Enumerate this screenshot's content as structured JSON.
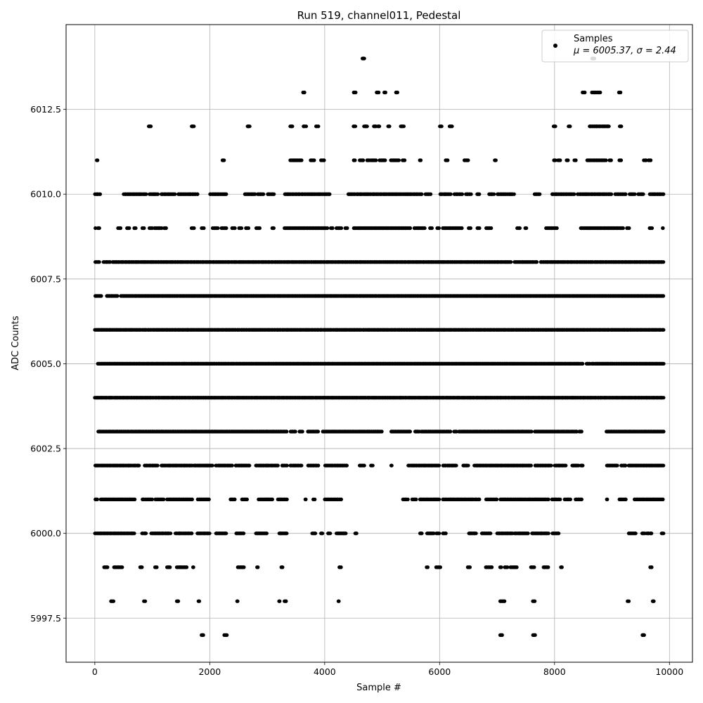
{
  "chart_data": {
    "type": "scatter",
    "title": "Run 519, channel011, Pedestal",
    "xlabel": "Sample #",
    "ylabel": "ADC Counts",
    "xlim": [
      -500,
      10400
    ],
    "ylim": [
      5996.2,
      6015.0
    ],
    "xticks": [
      0,
      2000,
      4000,
      6000,
      8000,
      10000
    ],
    "xtick_labels": [
      "0",
      "2000",
      "4000",
      "6000",
      "8000",
      "10000"
    ],
    "yticks": [
      5997.5,
      6000.0,
      6002.5,
      6005.0,
      6007.5,
      6010.0,
      6012.5
    ],
    "ytick_labels": [
      "5997.5",
      "6000.0",
      "6002.5",
      "6005.0",
      "6007.5",
      "6010.0",
      "6012.5"
    ],
    "grid": true,
    "legend_position": "top-right",
    "series": [
      {
        "name": "Samples",
        "label_line2": "μ = 6005.37, σ = 2.44",
        "color": "#000000",
        "n_samples": 10000,
        "level_density": {
          "5997": [
            [
              1850,
              1900
            ],
            [
              2250,
              2300
            ],
            [
              7050,
              7100
            ],
            [
              7620,
              7670
            ],
            [
              9520,
              9570
            ]
          ],
          "5998": [
            [
              270,
              330
            ],
            [
              850,
              880
            ],
            [
              1420,
              1460
            ],
            [
              1800,
              1830
            ],
            [
              2470,
              2500
            ],
            [
              3200,
              3230
            ],
            [
              3300,
              3340
            ],
            [
              4230,
              4260
            ],
            [
              7050,
              7140
            ],
            [
              7620,
              7660
            ],
            [
              9270,
              9300
            ],
            [
              9700,
              9740
            ]
          ],
          "5999": [
            [
              150,
              230
            ],
            [
              330,
              480
            ],
            [
              780,
              830
            ],
            [
              1040,
              1080
            ],
            [
              1250,
              1320
            ],
            [
              1420,
              1610
            ],
            [
              1700,
              1730
            ],
            [
              2480,
              2600
            ],
            [
              2820,
              2850
            ],
            [
              3240,
              3280
            ],
            [
              4250,
              4290
            ],
            [
              5770,
              5800
            ],
            [
              5930,
              6020
            ],
            [
              6480,
              6540
            ],
            [
              6800,
              6920
            ],
            [
              7050,
              7080
            ],
            [
              7130,
              7180
            ],
            [
              7230,
              7350
            ],
            [
              7580,
              7650
            ],
            [
              7800,
              7900
            ],
            [
              8100,
              8140
            ],
            [
              9660,
              9700
            ]
          ],
          "6000": [
            [
              0,
              700
            ],
            [
              820,
              900
            ],
            [
              980,
              1320
            ],
            [
              1400,
              1700
            ],
            [
              1780,
              2000
            ],
            [
              2100,
              2300
            ],
            [
              2450,
              2600
            ],
            [
              2800,
              3000
            ],
            [
              3200,
              3350
            ],
            [
              3780,
              3850
            ],
            [
              3930,
              3970
            ],
            [
              4050,
              4100
            ],
            [
              4200,
              4380
            ],
            [
              4520,
              4560
            ],
            [
              5650,
              5700
            ],
            [
              5780,
              5900
            ],
            [
              5940,
              6000
            ],
            [
              6050,
              6120
            ],
            [
              6500,
              6640
            ],
            [
              6730,
              6900
            ],
            [
              7000,
              7280
            ],
            [
              7300,
              7550
            ],
            [
              7600,
              7900
            ],
            [
              7960,
              8080
            ],
            [
              9280,
              9420
            ],
            [
              9520,
              9570
            ],
            [
              9600,
              9700
            ],
            [
              9860,
              9900
            ]
          ],
          "6001": [
            [
              0,
              50
            ],
            [
              100,
              700
            ],
            [
              820,
              1000
            ],
            [
              1050,
              1200
            ],
            [
              1250,
              1700
            ],
            [
              1780,
              2000
            ],
            [
              2350,
              2450
            ],
            [
              2550,
              2660
            ],
            [
              2850,
              3100
            ],
            [
              3180,
              3350
            ],
            [
              3650,
              3680
            ],
            [
              3800,
              3830
            ],
            [
              4000,
              4300
            ],
            [
              5360,
              5450
            ],
            [
              5520,
              5600
            ],
            [
              5650,
              6000
            ],
            [
              6050,
              6700
            ],
            [
              6800,
              7000
            ],
            [
              7050,
              7900
            ],
            [
              7950,
              8100
            ],
            [
              8170,
              8280
            ],
            [
              8360,
              8480
            ],
            [
              8900,
              8930
            ],
            [
              9120,
              9250
            ],
            [
              9380,
              9900
            ]
          ],
          "6002": [
            [
              0,
              780
            ],
            [
              860,
              1100
            ],
            [
              1150,
              1700
            ],
            [
              1720,
              2050
            ],
            [
              2100,
              2400
            ],
            [
              2440,
              2700
            ],
            [
              2800,
              3200
            ],
            [
              3250,
              3350
            ],
            [
              3400,
              3600
            ],
            [
              3700,
              3900
            ],
            [
              4000,
              4400
            ],
            [
              4600,
              4700
            ],
            [
              4800,
              4840
            ],
            [
              5150,
              5180
            ],
            [
              5450,
              6000
            ],
            [
              6050,
              6300
            ],
            [
              6400,
              6500
            ],
            [
              6600,
              7600
            ],
            [
              7650,
              7950
            ],
            [
              8000,
              8200
            ],
            [
              8300,
              8420
            ],
            [
              8450,
              8500
            ],
            [
              8900,
              9100
            ],
            [
              9150,
              9250
            ],
            [
              9280,
              9900
            ]
          ],
          "6003": [
            [
              50,
              3350
            ],
            [
              3400,
              3500
            ],
            [
              3560,
              3620
            ],
            [
              3700,
              3900
            ],
            [
              3960,
              5000
            ],
            [
              5150,
              5500
            ],
            [
              5570,
              5650
            ],
            [
              5680,
              6200
            ],
            [
              6250,
              6300
            ],
            [
              6330,
              7600
            ],
            [
              7650,
              8400
            ],
            [
              8430,
              8480
            ],
            [
              8900,
              9900
            ]
          ],
          "6004": [
            [
              0,
              9900
            ]
          ],
          "6005": [
            [
              50,
              8500
            ],
            [
              8550,
              8620
            ],
            [
              8640,
              9900
            ]
          ],
          "6006": [
            [
              0,
              9900
            ]
          ],
          "6007": [
            [
              0,
              120
            ],
            [
              200,
              400
            ],
            [
              450,
              9900
            ]
          ],
          "6008": [
            [
              0,
              90
            ],
            [
              150,
              280
            ],
            [
              300,
              7250
            ],
            [
              7300,
              7700
            ],
            [
              7750,
              9900
            ]
          ],
          "6009": [
            [
              0,
              20
            ],
            [
              50,
              90
            ],
            [
              400,
              460
            ],
            [
              550,
              600
            ],
            [
              680,
              720
            ],
            [
              820,
              860
            ],
            [
              950,
              1000
            ],
            [
              1040,
              1170
            ],
            [
              1200,
              1250
            ],
            [
              1680,
              1730
            ],
            [
              1860,
              1900
            ],
            [
              2050,
              2150
            ],
            [
              2200,
              2300
            ],
            [
              2380,
              2450
            ],
            [
              2500,
              2560
            ],
            [
              2620,
              2680
            ],
            [
              2800,
              2880
            ],
            [
              3080,
              3120
            ],
            [
              3300,
              3330
            ],
            [
              3320,
              4050
            ],
            [
              4100,
              4150
            ],
            [
              4200,
              4300
            ],
            [
              4350,
              4400
            ],
            [
              4500,
              5500
            ],
            [
              5550,
              5750
            ],
            [
              5830,
              5870
            ],
            [
              5950,
              6000
            ],
            [
              6050,
              6400
            ],
            [
              6500,
              6550
            ],
            [
              6650,
              6700
            ],
            [
              6800,
              6900
            ],
            [
              7350,
              7400
            ],
            [
              7480,
              7520
            ],
            [
              7850,
              8050
            ],
            [
              8450,
              9200
            ],
            [
              9250,
              9300
            ],
            [
              9650,
              9700
            ],
            [
              9870,
              9900
            ]
          ],
          "6010": [
            [
              0,
              100
            ],
            [
              500,
              900
            ],
            [
              950,
              1100
            ],
            [
              1150,
              1400
            ],
            [
              1450,
              1800
            ],
            [
              2000,
              2300
            ],
            [
              2600,
              2800
            ],
            [
              2830,
              2940
            ],
            [
              3000,
              3120
            ],
            [
              3300,
              4100
            ],
            [
              4400,
              5700
            ],
            [
              5750,
              5850
            ],
            [
              6000,
              6200
            ],
            [
              6250,
              6400
            ],
            [
              6450,
              6550
            ],
            [
              6650,
              6700
            ],
            [
              6850,
              6950
            ],
            [
              7000,
              7300
            ],
            [
              7650,
              7750
            ],
            [
              7950,
              8350
            ],
            [
              8400,
              9000
            ],
            [
              9050,
              9250
            ],
            [
              9300,
              9400
            ],
            [
              9450,
              9550
            ],
            [
              9650,
              9900
            ]
          ],
          "6011": [
            [
              30,
              60
            ],
            [
              2220,
              2260
            ],
            [
              3400,
              3600
            ],
            [
              3750,
              3820
            ],
            [
              3930,
              4000
            ],
            [
              4500,
              4540
            ],
            [
              4600,
              4680
            ],
            [
              4730,
              4780
            ],
            [
              4800,
              4900
            ],
            [
              4950,
              5060
            ],
            [
              5150,
              5300
            ],
            [
              5350,
              5400
            ],
            [
              5650,
              5680
            ],
            [
              6100,
              6150
            ],
            [
              6420,
              6500
            ],
            [
              6950,
              6990
            ],
            [
              7980,
              8020
            ],
            [
              8060,
              8100
            ],
            [
              8200,
              8240
            ],
            [
              8340,
              8380
            ],
            [
              8560,
              8900
            ],
            [
              8950,
              8990
            ],
            [
              9120,
              9170
            ],
            [
              9550,
              9600
            ],
            [
              9630,
              9680
            ]
          ],
          "6012": [
            [
              930,
              980
            ],
            [
              1680,
              1730
            ],
            [
              2650,
              2700
            ],
            [
              3400,
              3450
            ],
            [
              3620,
              3680
            ],
            [
              3840,
              3900
            ],
            [
              4500,
              4540
            ],
            [
              4680,
              4750
            ],
            [
              4850,
              4900
            ],
            [
              4920,
              4960
            ],
            [
              5100,
              5140
            ],
            [
              5320,
              5380
            ],
            [
              6000,
              6040
            ],
            [
              6170,
              6220
            ],
            [
              7980,
              8020
            ],
            [
              8240,
              8280
            ],
            [
              8600,
              8950
            ],
            [
              9130,
              9170
            ]
          ],
          "6013": [
            [
              3620,
              3660
            ],
            [
              4500,
              4550
            ],
            [
              4900,
              4950
            ],
            [
              5030,
              5070
            ],
            [
              5230,
              5270
            ],
            [
              8480,
              8530
            ],
            [
              8650,
              8800
            ],
            [
              9120,
              9160
            ]
          ],
          "6014": [
            [
              4650,
              4700
            ],
            [
              8650,
              8700
            ]
          ]
        }
      }
    ]
  }
}
